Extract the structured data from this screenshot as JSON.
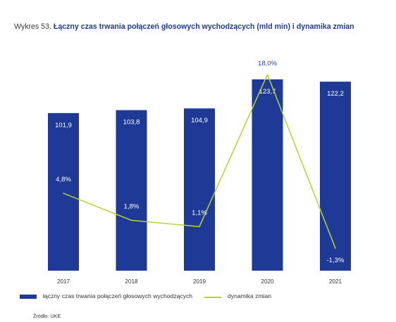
{
  "title": {
    "prefix": "Wykres 53.",
    "text": "Łączny czas trwania połączeń głosowych wychodzących (mld min) i dynamika zmian"
  },
  "source": "Źródło: UKE",
  "colors": {
    "bar": "#1e3a96",
    "line": "#b5d334",
    "bar_label": "#ffffff",
    "line_label": "#ffffff",
    "top_label": "#1e3a96"
  },
  "chart_data": {
    "type": "bar",
    "title": "Łączny czas trwania połączeń głosowych wychodzących (mld min) i dynamika zmian",
    "categories": [
      "2017",
      "2018",
      "2019",
      "2020",
      "2021"
    ],
    "series": [
      {
        "name": "łączny czas trwania połączeń głosowych wychodzących",
        "type": "bar",
        "values": [
          101.9,
          103.8,
          104.9,
          123.7,
          122.2
        ],
        "labels": [
          "101,9",
          "103,8",
          "104,9",
          "123,7",
          "122,2"
        ]
      },
      {
        "name": "dynamika zmian",
        "type": "line",
        "values": [
          4.8,
          1.8,
          1.1,
          18.0,
          -1.3
        ],
        "labels": [
          "4,8%",
          "1,8%",
          "1,1%",
          "18,0%",
          "-1,3%"
        ]
      }
    ],
    "legend": "bottom-left",
    "grid": false
  }
}
